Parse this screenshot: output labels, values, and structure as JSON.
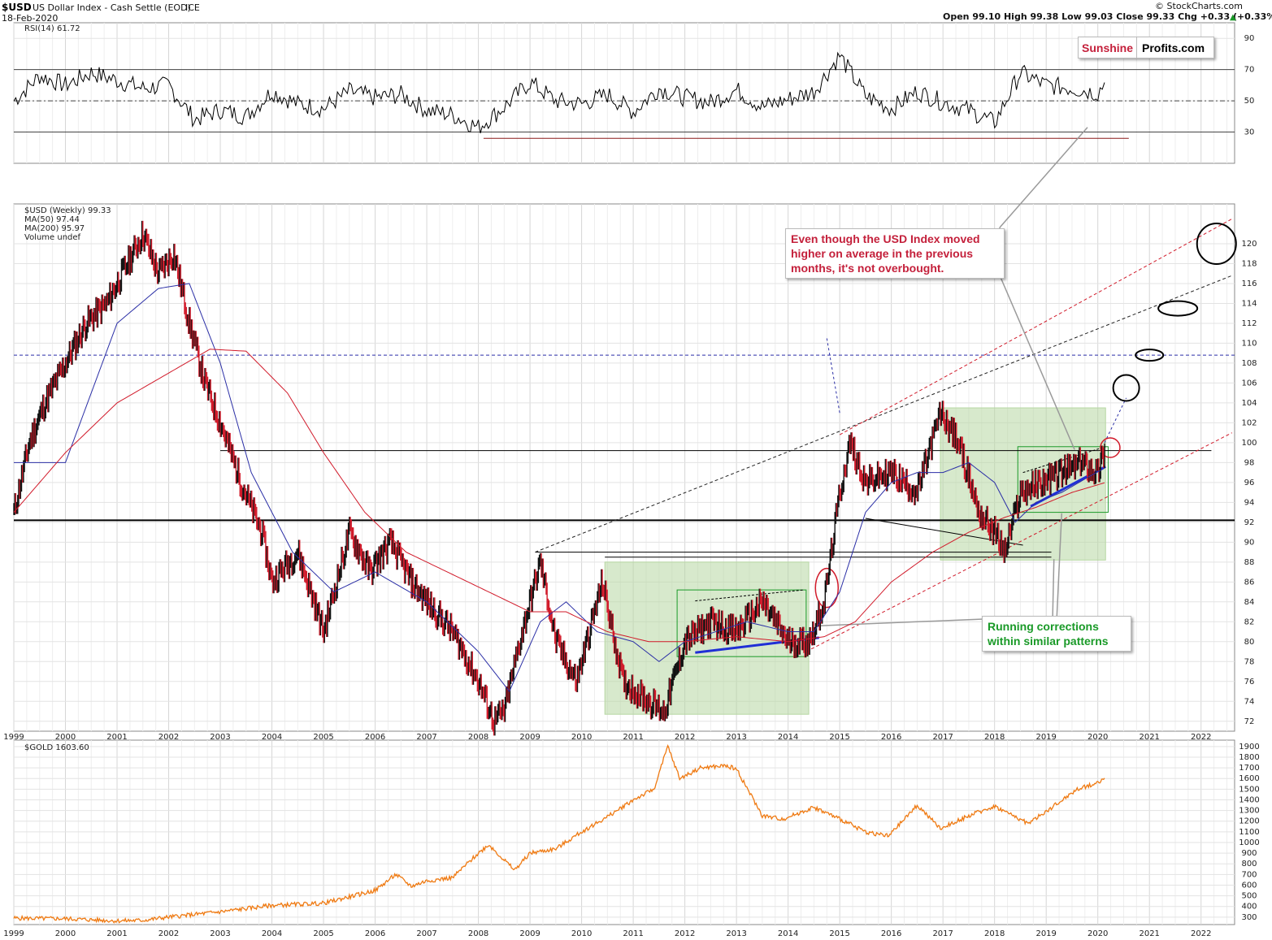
{
  "header": {
    "symbol": "$USD",
    "name": "US Dollar Index - Cash Settle (EOD)",
    "exchange": "ICE",
    "date": "18-Feb-2020",
    "copyright": "© StockCharts.com",
    "ohlc": "Open 99.10  High 99.38  Low 99.03  Close 99.33  Chg +0.33 (+0.33%)",
    "up_arrow": "▲"
  },
  "brand": {
    "part1": "Sunshine",
    "part2": "Profits.com"
  },
  "panels": {
    "rsi_legend": "RSI(14) 61.72",
    "price_legend_1": "$USD (Weekly) 99.33",
    "price_legend_2": "MA(50) 97.44",
    "price_legend_3": "MA(200) 95.97",
    "price_legend_4": "Volume undef",
    "gold_legend": "$GOLD 1603.60"
  },
  "annotations": {
    "red_note": "Even though the USD Index moved higher on average in the previous months, it's not overbought.",
    "green_note": "Running corrections within similar patterns"
  },
  "colors": {
    "candle": "#111111",
    "candle_down": "#d11a2a",
    "ma50": "#2b2fa6",
    "ma200": "#d11a2a",
    "gold": "#ef7a12",
    "rsi": "#000000",
    "shade": "#b7d7a3",
    "trend_blue": "#1f2fd6",
    "accent_red": "#c4203b",
    "accent_green": "#1a9a28"
  },
  "chart_data": [
    {
      "type": "line",
      "title": "RSI(14)",
      "series": [
        {
          "name": "RSI(14)",
          "x": [
            1999.0,
            1999.5,
            2000.0,
            2000.5,
            2001.0,
            2001.5,
            2002.0,
            2002.5,
            2003.0,
            2003.5,
            2004.0,
            2004.5,
            2005.0,
            2005.5,
            2006.0,
            2006.5,
            2007.0,
            2007.5,
            2008.0,
            2008.5,
            2009.0,
            2009.5,
            2010.0,
            2010.5,
            2011.0,
            2011.5,
            2012.0,
            2012.5,
            2013.0,
            2013.5,
            2014.0,
            2014.5,
            2015.0,
            2015.5,
            2016.0,
            2016.5,
            2017.0,
            2017.5,
            2018.0,
            2018.5,
            2019.0,
            2019.5,
            2020.0,
            2020.13
          ],
          "values": [
            50,
            66,
            60,
            68,
            63,
            58,
            60,
            38,
            44,
            40,
            56,
            48,
            45,
            56,
            52,
            54,
            44,
            41,
            33,
            46,
            62,
            50,
            48,
            54,
            43,
            58,
            52,
            49,
            57,
            46,
            51,
            56,
            79,
            53,
            45,
            56,
            49,
            44,
            36,
            68,
            60,
            58,
            55,
            61.72
          ]
        }
      ],
      "y_ticks": [
        30,
        50,
        70,
        90
      ],
      "ylim": [
        10,
        100
      ],
      "reference_lines": [
        30,
        50,
        70
      ]
    },
    {
      "type": "line",
      "title": "$USD (Weekly)",
      "x_ticks": [
        "1999",
        "2000",
        "2001",
        "2002",
        "2003",
        "2004",
        "2005",
        "2006",
        "2007",
        "2008",
        "2009",
        "2010",
        "2011",
        "2012",
        "2013",
        "2014",
        "2015",
        "2016",
        "2017",
        "2018",
        "2019",
        "2020",
        "2021",
        "2022"
      ],
      "y_ticks": [
        72,
        74,
        76,
        78,
        80,
        82,
        84,
        86,
        88,
        90,
        92,
        94,
        96,
        98,
        100,
        102,
        104,
        106,
        108,
        110,
        112,
        114,
        116,
        118,
        120
      ],
      "ylim": [
        71,
        124
      ],
      "series": [
        {
          "name": "$USD (Weekly)",
          "x": [
            1999.0,
            1999.3,
            1999.6,
            2000.0,
            2000.4,
            2000.8,
            2001.2,
            2001.5,
            2001.8,
            2002.1,
            2002.4,
            2002.7,
            2003.0,
            2003.4,
            2003.8,
            2004.0,
            2004.5,
            2005.0,
            2005.5,
            2005.9,
            2006.3,
            2006.7,
            2007.0,
            2007.5,
            2008.0,
            2008.3,
            2008.5,
            2008.8,
            2009.2,
            2009.5,
            2009.9,
            2010.4,
            2010.8,
            2011.3,
            2011.6,
            2012.0,
            2012.5,
            2013.0,
            2013.5,
            2014.0,
            2014.4,
            2014.7,
            2015.0,
            2015.2,
            2015.5,
            2016.0,
            2016.5,
            2016.95,
            2017.3,
            2017.7,
            2018.0,
            2018.2,
            2018.5,
            2018.9,
            2019.3,
            2019.7,
            2020.0,
            2020.13
          ],
          "values": [
            93,
            100,
            104,
            108,
            112,
            114,
            118,
            121,
            117,
            119,
            112,
            106,
            102,
            96,
            91,
            86,
            89,
            81,
            91,
            87,
            90,
            86,
            84,
            81,
            76,
            72,
            73,
            80,
            88,
            80,
            76,
            86,
            76,
            74,
            73,
            80,
            82,
            81,
            84,
            80,
            80,
            84,
            95,
            100,
            96,
            97,
            95,
            103,
            100,
            93,
            91,
            89,
            95,
            96,
            97,
            98,
            97,
            99.33
          ]
        },
        {
          "name": "MA(50)",
          "x": [
            1999.0,
            2000.0,
            2001.0,
            2001.8,
            2002.4,
            2003.0,
            2003.6,
            2004.4,
            2005.2,
            2006.0,
            2007.0,
            2008.0,
            2008.6,
            2009.2,
            2009.7,
            2010.3,
            2011.0,
            2011.5,
            2012.0,
            2012.6,
            2013.2,
            2014.0,
            2014.5,
            2015.0,
            2015.5,
            2016.0,
            2016.5,
            2017.0,
            2017.5,
            2018.0,
            2018.4,
            2018.8,
            2019.3,
            2019.8,
            2020.13
          ],
          "values": [
            98,
            98,
            112,
            115.5,
            116,
            108,
            97,
            89,
            85,
            87,
            84,
            79,
            75,
            82,
            84,
            81,
            80,
            78,
            80,
            81,
            82,
            81,
            81,
            85,
            93,
            96,
            97,
            97,
            98,
            96,
            92,
            94,
            95,
            96.5,
            97.44
          ]
        },
        {
          "name": "MA(200)",
          "x": [
            1999.0,
            2000.0,
            2001.0,
            2002.0,
            2002.8,
            2003.5,
            2004.3,
            2005.0,
            2005.8,
            2006.6,
            2007.4,
            2008.2,
            2009.0,
            2009.7,
            2010.5,
            2011.3,
            2012.0,
            2013.0,
            2014.0,
            2014.7,
            2015.3,
            2016.0,
            2016.8,
            2017.5,
            2018.2,
            2018.8,
            2019.5,
            2020.13
          ],
          "values": [
            93,
            99,
            104,
            107,
            109.4,
            109.2,
            105,
            99,
            93,
            89,
            87,
            85,
            83,
            83,
            81,
            80,
            80,
            80.5,
            80,
            80.5,
            82,
            86,
            89,
            91,
            92.5,
            93.5,
            95,
            95.97
          ]
        }
      ]
    },
    {
      "type": "line",
      "title": "$GOLD",
      "series": [
        {
          "name": "$GOLD",
          "x": [
            1999.0,
            2000.0,
            2001.0,
            2001.5,
            2002.0,
            2003.0,
            2004.0,
            2005.0,
            2006.0,
            2006.4,
            2006.7,
            2007.0,
            2007.5,
            2008.0,
            2008.2,
            2008.7,
            2009.0,
            2009.5,
            2010.0,
            2010.5,
            2011.0,
            2011.4,
            2011.67,
            2011.9,
            2012.3,
            2012.8,
            2013.0,
            2013.5,
            2013.9,
            2014.5,
            2015.0,
            2015.5,
            2015.95,
            2016.5,
            2016.95,
            2017.5,
            2018.0,
            2018.65,
            2019.0,
            2019.6,
            2020.0,
            2020.13
          ],
          "values": [
            290,
            285,
            265,
            270,
            300,
            350,
            410,
            430,
            550,
            700,
            590,
            640,
            670,
            900,
            980,
            740,
            900,
            940,
            1100,
            1240,
            1400,
            1500,
            1900,
            1600,
            1700,
            1720,
            1690,
            1250,
            1220,
            1330,
            1220,
            1100,
            1060,
            1350,
            1130,
            1250,
            1340,
            1180,
            1290,
            1500,
            1560,
            1603.6
          ]
        }
      ],
      "y_ticks": [
        300,
        400,
        500,
        600,
        700,
        800,
        900,
        1000,
        1100,
        1200,
        1300,
        1400,
        1500,
        1600,
        1700,
        1800,
        1900
      ],
      "ylim": [
        230,
        1960
      ]
    }
  ]
}
